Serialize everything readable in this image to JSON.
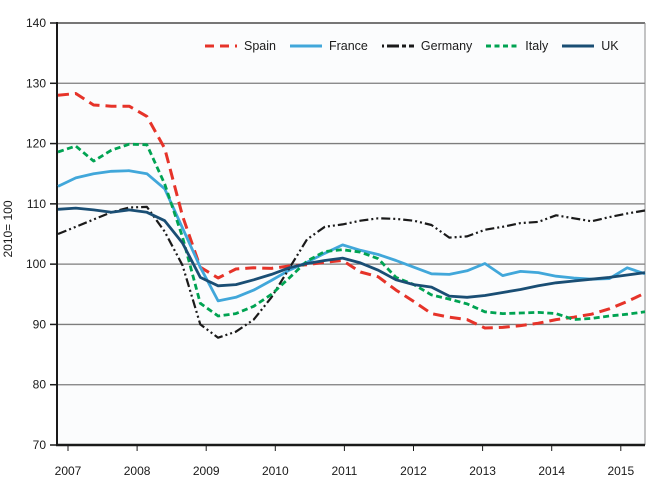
{
  "figure": {
    "background": "#ffffff",
    "plot_background": "#fbfcfd",
    "grid_color": "#7d7d7d",
    "axis_color": "#1a1a1a",
    "text_color": "#1a1a1a"
  },
  "chart_data": {
    "type": "line",
    "title": "",
    "ylabel": "2010= 100",
    "xlabel": "",
    "ylim": [
      70,
      140
    ],
    "yticks": [
      140,
      130,
      120,
      110,
      100,
      90,
      80,
      70
    ],
    "x_axis_year_labels": [
      "2007",
      "2008",
      "2009",
      "2010",
      "2011",
      "2012",
      "2013",
      "2014",
      "2015"
    ],
    "x_frequency": "quarterly",
    "x_range": "2007Q1 to 2015Q2",
    "grid": "horizontal",
    "legend_position": "top-inside",
    "series": [
      {
        "name": "Spain",
        "color": "#e63329",
        "dash": "11 6",
        "legend_dash": "9 6",
        "width": 3,
        "values": [
          128.0,
          128.3,
          126.4,
          126.2,
          126.2,
          124.5,
          119.2,
          108.0,
          99.5,
          97.7,
          99.2,
          99.4,
          99.3,
          99.7,
          99.9,
          100.3,
          100.6,
          98.7,
          97.9,
          95.7,
          93.8,
          91.8,
          91.2,
          90.8,
          89.4,
          89.5,
          89.8,
          90.2,
          90.8,
          91.2,
          91.7,
          92.6,
          93.8,
          95.2
        ]
      },
      {
        "name": "France",
        "color": "#41a7da",
        "dash": "",
        "legend_dash": "",
        "width": 2.8,
        "values": [
          112.9,
          114.3,
          115.0,
          115.4,
          115.5,
          115.0,
          112.5,
          106.0,
          99.5,
          93.9,
          94.5,
          95.7,
          97.3,
          99.0,
          100.3,
          101.8,
          103.2,
          102.3,
          101.6,
          100.6,
          99.5,
          98.4,
          98.3,
          98.9,
          100.1,
          98.1,
          98.8,
          98.6,
          98.0,
          97.7,
          97.5,
          97.6,
          99.4,
          98.4
        ]
      },
      {
        "name": "Germany",
        "color": "#1a1a1a",
        "dash": "9 3 2 3 2 3",
        "legend_dash": "2 3 12 3 2 0",
        "width": 2.2,
        "values": [
          105.0,
          106.2,
          107.4,
          108.6,
          109.4,
          109.5,
          105.4,
          99.8,
          90.0,
          87.8,
          88.8,
          90.8,
          94.5,
          99.3,
          104.1,
          106.2,
          106.6,
          107.2,
          107.6,
          107.5,
          107.2,
          106.5,
          104.4,
          104.6,
          105.7,
          106.2,
          106.8,
          107.0,
          108.1,
          107.6,
          107.1,
          107.8,
          108.4,
          108.9
        ]
      },
      {
        "name": "Italy",
        "color": "#00a352",
        "dash": "6 3.5",
        "legend_dash": "5 3.5",
        "width": 2.8,
        "values": [
          118.6,
          119.6,
          117.1,
          118.9,
          119.9,
          119.8,
          113.3,
          104.5,
          93.5,
          91.4,
          91.8,
          93.0,
          95.0,
          97.7,
          100.5,
          102.1,
          102.4,
          102.0,
          100.9,
          97.8,
          96.6,
          94.9,
          94.2,
          93.4,
          92.1,
          91.8,
          91.9,
          92.0,
          91.8,
          90.8,
          91.0,
          91.4,
          91.7,
          92.1
        ]
      },
      {
        "name": "UK",
        "color": "#1a4e74",
        "dash": "",
        "legend_dash": "",
        "width": 2.8,
        "values": [
          109.1,
          109.3,
          109.0,
          108.6,
          109.0,
          108.6,
          107.2,
          103.5,
          97.8,
          96.4,
          96.6,
          97.4,
          98.3,
          99.4,
          100.1,
          100.6,
          101.0,
          100.2,
          99.0,
          97.4,
          96.6,
          96.2,
          94.7,
          94.5,
          94.8,
          95.3,
          95.8,
          96.4,
          96.9,
          97.2,
          97.5,
          97.8,
          98.2,
          98.6
        ]
      }
    ]
  }
}
